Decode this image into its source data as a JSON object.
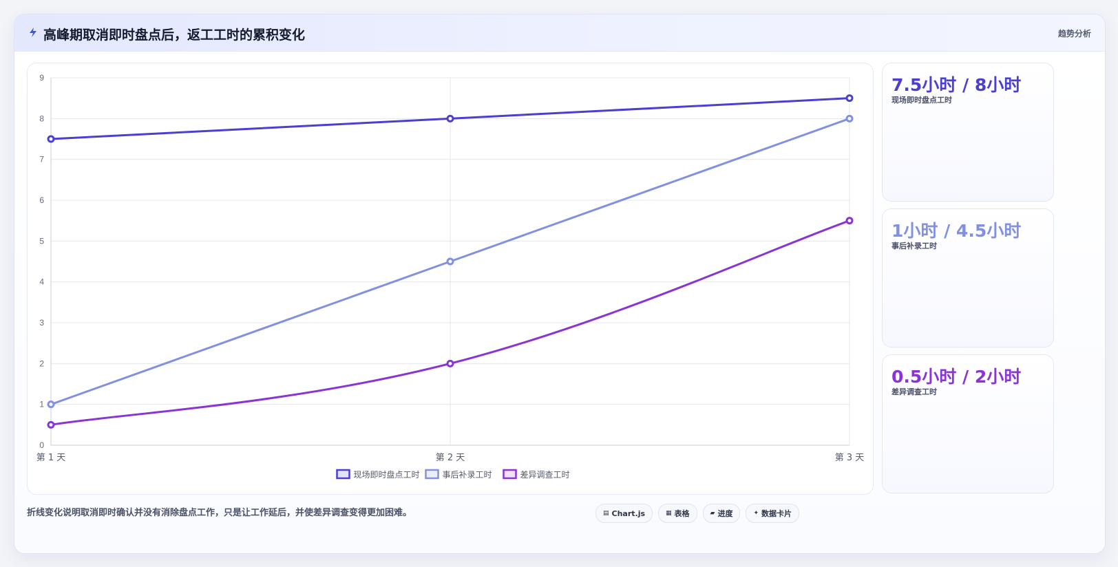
{
  "header": {
    "title": "高峰期取消即时盘点后，返工工时的累积变化",
    "tag": "趋势分析"
  },
  "colors": {
    "series1": "#4b3fd1",
    "series2": "#8290e2",
    "series3": "#8a34d6"
  },
  "chart_data": {
    "type": "line",
    "categories": [
      "第 1 天",
      "第 2 天",
      "第 3 天"
    ],
    "series": [
      {
        "name": "现场即时盘点工时",
        "values": [
          7.5,
          8,
          8.5
        ],
        "color": "#4b3fd1"
      },
      {
        "name": "事后补录工时",
        "values": [
          1,
          4.5,
          8
        ],
        "color": "#8290e2"
      },
      {
        "name": "差异调查工时",
        "values": [
          0.5,
          2,
          5.5
        ],
        "color": "#8a34d6"
      }
    ],
    "ylim": [
      0,
      9
    ],
    "yticks": [
      "0",
      "1",
      "2",
      "3",
      "4",
      "5",
      "6",
      "7",
      "8",
      "9"
    ],
    "grid": true,
    "legend": "bottom-center"
  },
  "kpis": [
    {
      "value": "7.5小时 / 8小时",
      "label": "现场即时盘点工时",
      "color": "#4b3fd1"
    },
    {
      "value": "1小时 / 4.5小时",
      "label": "事后补录工时",
      "color": "#8290e2"
    },
    {
      "value": "0.5小时 / 2小时",
      "label": "差异调查工时",
      "color": "#8a34d6"
    }
  ],
  "footer": {
    "note": "折线变化说明取消即时确认并没有消除盘点工作，只是让工作延后，并使差异调查变得更加困难。",
    "chips": [
      {
        "label": "Chart.js",
        "icon": "chart-icon"
      },
      {
        "label": "表格",
        "icon": "table-icon"
      },
      {
        "label": "进度",
        "icon": "progress-icon"
      },
      {
        "label": "数据卡片",
        "icon": "cards-icon"
      }
    ]
  }
}
